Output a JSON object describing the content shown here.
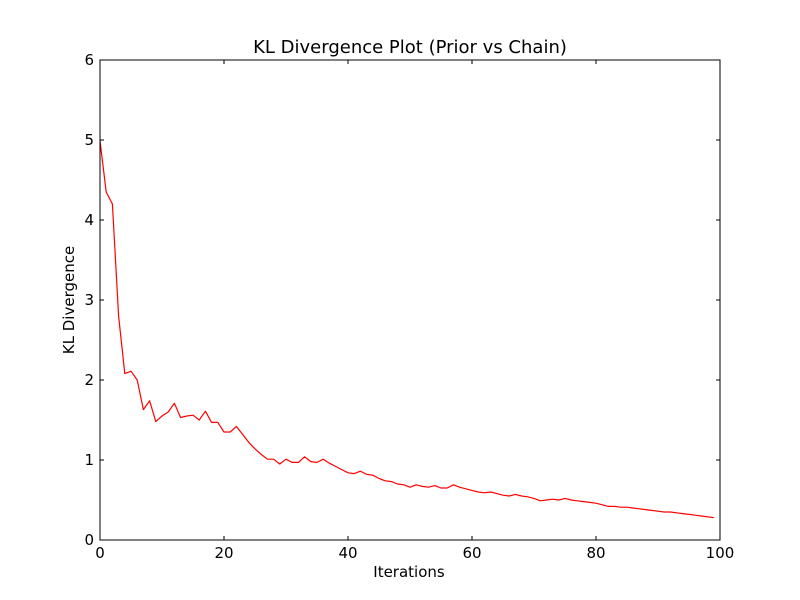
{
  "chart_data": {
    "type": "line",
    "title": "KL Divergence Plot (Prior vs Chain)",
    "xlabel": "Iterations",
    "ylabel": "KL Divergence",
    "xlim": [
      0,
      100
    ],
    "ylim": [
      0,
      6
    ],
    "xticks": [
      0,
      20,
      40,
      60,
      80,
      100
    ],
    "yticks": [
      0,
      1,
      2,
      3,
      4,
      5,
      6
    ],
    "grid": false,
    "series": [
      {
        "color": "#ff0000",
        "x": [
          0,
          1,
          2,
          3,
          4,
          5,
          6,
          7,
          8,
          9,
          10,
          11,
          12,
          13,
          14,
          15,
          16,
          17,
          18,
          19,
          20,
          21,
          22,
          23,
          24,
          25,
          26,
          27,
          28,
          29,
          30,
          31,
          32,
          33,
          34,
          35,
          36,
          37,
          38,
          39,
          40,
          41,
          42,
          43,
          44,
          45,
          46,
          47,
          48,
          49,
          50,
          51,
          52,
          53,
          54,
          55,
          56,
          57,
          58,
          59,
          60,
          61,
          62,
          63,
          64,
          65,
          66,
          67,
          68,
          69,
          70,
          71,
          72,
          73,
          74,
          75,
          76,
          77,
          78,
          79,
          80,
          81,
          82,
          83,
          84,
          85,
          86,
          87,
          88,
          89,
          90,
          91,
          92,
          93,
          94,
          95,
          96,
          97,
          98,
          99
        ],
        "y": [
          4.99,
          4.35,
          4.2,
          2.8,
          2.08,
          2.11,
          2.0,
          1.63,
          1.74,
          1.48,
          1.55,
          1.6,
          1.71,
          1.53,
          1.55,
          1.56,
          1.5,
          1.61,
          1.47,
          1.47,
          1.35,
          1.35,
          1.42,
          1.32,
          1.22,
          1.14,
          1.07,
          1.01,
          1.01,
          0.95,
          1.01,
          0.97,
          0.97,
          1.04,
          0.98,
          0.97,
          1.01,
          0.96,
          0.92,
          0.88,
          0.84,
          0.83,
          0.86,
          0.82,
          0.81,
          0.77,
          0.74,
          0.73,
          0.7,
          0.69,
          0.66,
          0.69,
          0.67,
          0.66,
          0.68,
          0.65,
          0.65,
          0.69,
          0.66,
          0.64,
          0.62,
          0.6,
          0.59,
          0.6,
          0.58,
          0.56,
          0.55,
          0.57,
          0.55,
          0.54,
          0.52,
          0.49,
          0.5,
          0.51,
          0.5,
          0.52,
          0.5,
          0.49,
          0.48,
          0.47,
          0.46,
          0.44,
          0.42,
          0.42,
          0.41,
          0.41,
          0.4,
          0.39,
          0.38,
          0.37,
          0.36,
          0.35,
          0.35,
          0.34,
          0.33,
          0.32,
          0.31,
          0.3,
          0.29,
          0.28
        ]
      }
    ]
  }
}
